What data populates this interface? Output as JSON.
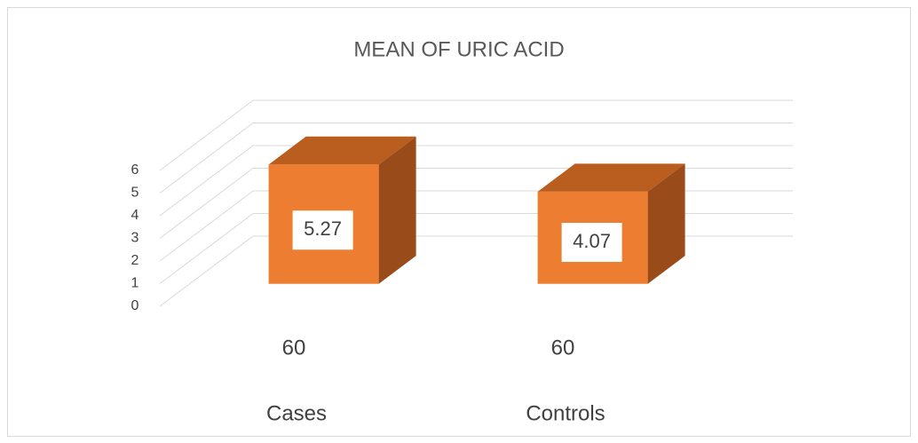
{
  "chart_data": {
    "type": "bar3d",
    "title": "MEAN OF URIC ACID",
    "categories": [
      "Cases",
      "Controls"
    ],
    "n": [
      60,
      60
    ],
    "values": [
      5.27,
      4.07
    ],
    "color": "#ED7D31",
    "ylim": [
      0,
      6
    ],
    "yticks": [
      0,
      1,
      2,
      3,
      4,
      5,
      6
    ],
    "grid": true
  }
}
